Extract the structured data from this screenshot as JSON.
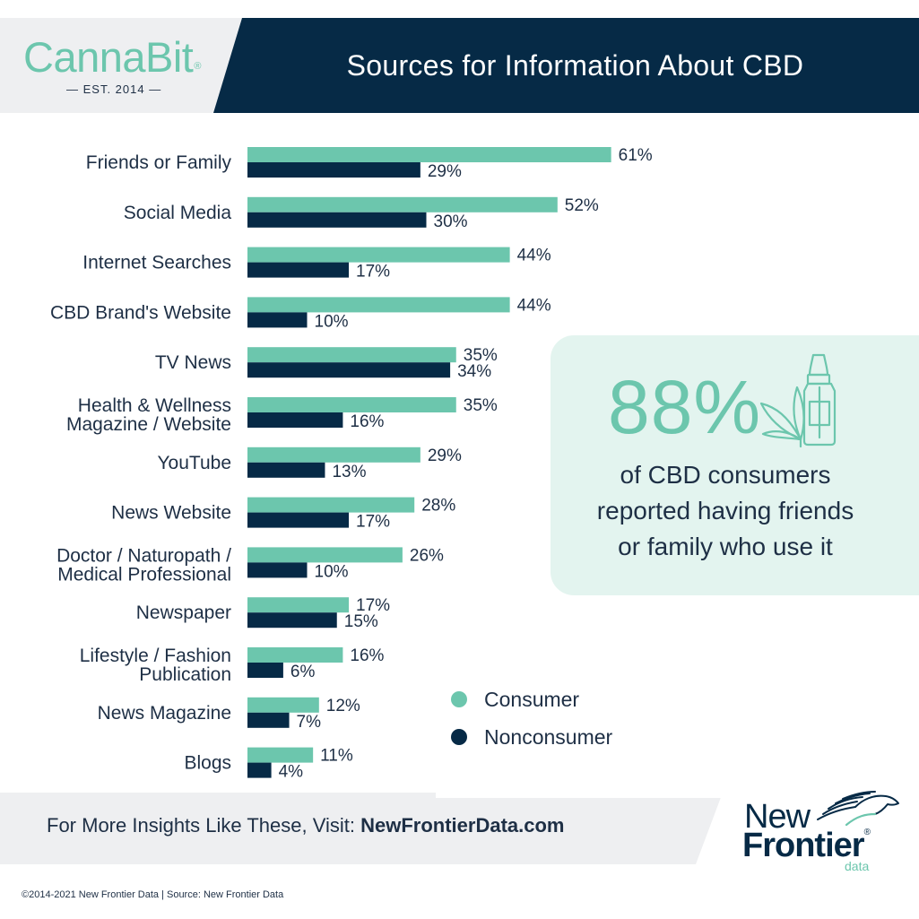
{
  "header": {
    "title": "Sources for Information About CBD",
    "logo_word": "CannaBit",
    "logo_mark": "®",
    "logo_tagline": "— EST. 2014 —"
  },
  "colors": {
    "consumer": "#6cc6ad",
    "nonconsumer": "#062a46",
    "text": "#1e2f45"
  },
  "chart_data": {
    "type": "bar",
    "orientation": "horizontal",
    "categories": [
      "Friends or Family",
      "Social Media",
      "Internet Searches",
      "CBD Brand's Website",
      "TV News",
      "Health & Wellness\nMagazine / Website",
      "YouTube",
      "News Website",
      "Doctor / Naturopath /\nMedical Professional",
      "Newspaper",
      "Lifestyle / Fashion\nPublication",
      "News Magazine",
      "Blogs"
    ],
    "series": [
      {
        "name": "Consumer",
        "values": [
          61,
          52,
          44,
          44,
          35,
          35,
          29,
          28,
          26,
          17,
          16,
          12,
          11
        ]
      },
      {
        "name": "Nonconsumer",
        "values": [
          29,
          30,
          17,
          10,
          34,
          16,
          13,
          17,
          10,
          15,
          6,
          7,
          4
        ]
      }
    ],
    "value_suffix": "%",
    "xlim": [
      0,
      100
    ],
    "grid": false,
    "legend": "bottom-right"
  },
  "highlight": {
    "stat": "88%",
    "text": "of CBD consumers\nreported having friends\nor family who use it",
    "icon": "cbd-bottle-leaf-icon"
  },
  "footer": {
    "prefix": "For More Insights Like These, Visit: ",
    "link": "NewFrontierData.com",
    "brand_new": "New",
    "brand_frontier": "Frontier",
    "brand_mark": "®",
    "brand_data": "data",
    "copyright": "©2014-2021 New Frontier Data | Source: New Frontier Data"
  }
}
